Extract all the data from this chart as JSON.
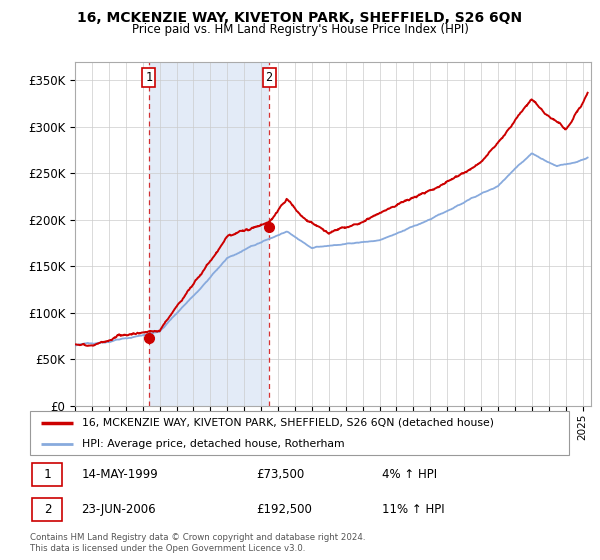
{
  "title": "16, MCKENZIE WAY, KIVETON PARK, SHEFFIELD, S26 6QN",
  "subtitle": "Price paid vs. HM Land Registry's House Price Index (HPI)",
  "legend_line1": "16, MCKENZIE WAY, KIVETON PARK, SHEFFIELD, S26 6QN (detached house)",
  "legend_line2": "HPI: Average price, detached house, Rotherham",
  "sale1_date": "14-MAY-1999",
  "sale1_price": "£73,500",
  "sale1_hpi": "4% ↑ HPI",
  "sale1_year": 1999.37,
  "sale1_value": 73500,
  "sale2_date": "23-JUN-2006",
  "sale2_price": "£192,500",
  "sale2_hpi": "11% ↑ HPI",
  "sale2_year": 2006.47,
  "sale2_value": 192500,
  "ylabel_ticks": [
    "£0",
    "£50K",
    "£100K",
    "£150K",
    "£200K",
    "£250K",
    "£300K",
    "£350K"
  ],
  "ytick_values": [
    0,
    50000,
    100000,
    150000,
    200000,
    250000,
    300000,
    350000
  ],
  "ylim": [
    0,
    370000
  ],
  "xlim_start": 1995.0,
  "xlim_end": 2025.5,
  "footer": "Contains HM Land Registry data © Crown copyright and database right 2024.\nThis data is licensed under the Open Government Licence v3.0.",
  "red_color": "#cc0000",
  "blue_color": "#88aadd",
  "shade_color": "#c8d8f0",
  "grid_color": "#cccccc"
}
